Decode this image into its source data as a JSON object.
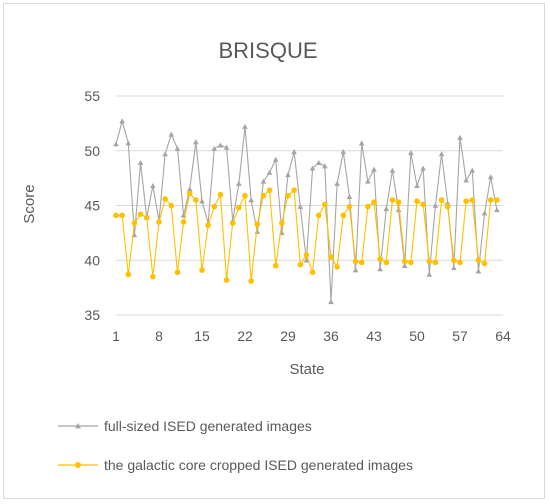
{
  "chart_data": {
    "type": "line",
    "title": "BRISQUE",
    "xlabel": "State",
    "ylabel": "Score",
    "ylim": [
      35,
      55
    ],
    "yticks": [
      35,
      40,
      45,
      50,
      55
    ],
    "xlim": [
      1,
      64
    ],
    "xticks": [
      1,
      8,
      15,
      22,
      29,
      36,
      43,
      50,
      57,
      64
    ],
    "grid": "horizontal",
    "legend_position": "bottom",
    "x": [
      1,
      2,
      3,
      4,
      5,
      6,
      7,
      8,
      9,
      10,
      11,
      12,
      13,
      14,
      15,
      16,
      17,
      18,
      19,
      20,
      21,
      22,
      23,
      24,
      25,
      26,
      27,
      28,
      29,
      30,
      31,
      32,
      33,
      34,
      35,
      36,
      37,
      38,
      39,
      40,
      41,
      42,
      43,
      44,
      45,
      46,
      47,
      48,
      49,
      50,
      51,
      52,
      53,
      54,
      55,
      56,
      57,
      58,
      59,
      60,
      61,
      62,
      63
    ],
    "series": [
      {
        "name": "full-sized ISED generated images",
        "color": "#a5a5a5",
        "marker": "triangle",
        "values": [
          50.6,
          52.7,
          50.7,
          42.3,
          48.9,
          43.9,
          46.8,
          43.6,
          49.7,
          51.5,
          50.2,
          44.1,
          46.5,
          50.8,
          45.4,
          43.4,
          50.2,
          50.5,
          50.3,
          43.6,
          47.0,
          52.2,
          45.5,
          42.6,
          47.2,
          48.0,
          49.2,
          42.5,
          47.8,
          49.9,
          44.9,
          40.0,
          48.4,
          48.9,
          48.6,
          36.2,
          47.0,
          49.9,
          45.8,
          39.1,
          50.7,
          47.2,
          48.3,
          39.2,
          44.7,
          48.2,
          44.6,
          39.5,
          49.8,
          46.8,
          48.4,
          38.7,
          45.0,
          49.7,
          45.2,
          39.3,
          51.2,
          47.3,
          48.2,
          39.0,
          44.3,
          47.6,
          44.6
        ]
      },
      {
        "name": "the galactic core cropped ISED generated images",
        "color": "#ffc000",
        "marker": "circle",
        "values": [
          44.1,
          44.1,
          38.7,
          43.4,
          44.2,
          43.9,
          38.5,
          43.5,
          45.6,
          45.0,
          38.9,
          43.5,
          46.1,
          45.5,
          39.1,
          43.2,
          44.9,
          46.0,
          38.2,
          43.4,
          44.8,
          45.9,
          38.1,
          43.3,
          45.9,
          46.4,
          39.5,
          43.4,
          45.9,
          46.4,
          39.6,
          40.5,
          38.9,
          44.1,
          45.1,
          40.3,
          39.4,
          44.1,
          44.9,
          39.9,
          39.8,
          44.9,
          45.3,
          40.1,
          39.8,
          45.5,
          45.3,
          39.9,
          39.8,
          45.4,
          45.1,
          39.9,
          39.8,
          45.5,
          44.9,
          40.0,
          39.8,
          45.4,
          45.5,
          40.0,
          39.7,
          45.5,
          45.5
        ]
      }
    ]
  }
}
